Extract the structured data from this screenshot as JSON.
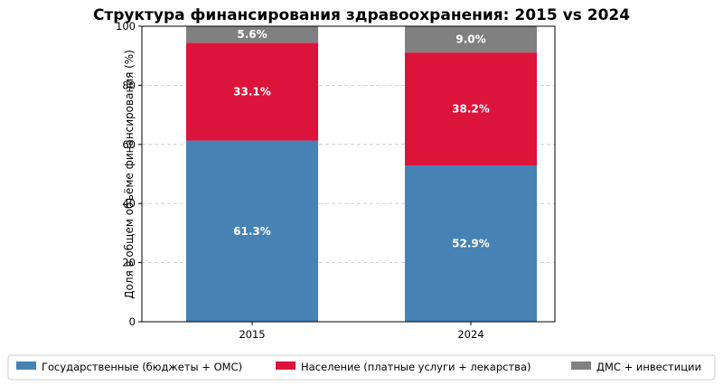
{
  "chart_data": {
    "type": "bar",
    "stacked": true,
    "title": "Структура финансирования здравоохранения: 2015 vs 2024",
    "xlabel": "",
    "ylabel": "Доля в общем объёме финансирования (%)",
    "ylim": [
      0,
      100
    ],
    "yticks": [
      0,
      20,
      40,
      60,
      80,
      100
    ],
    "grid": "horizontal-dashed",
    "legend_position": "bottom",
    "categories": [
      "2015",
      "2024"
    ],
    "series": [
      {
        "name": "Государственные (бюджеты + ОМС)",
        "values": [
          61.3,
          52.9
        ],
        "labels": [
          "61.3%",
          "52.9%"
        ],
        "color": "#4682b4"
      },
      {
        "name": "Население (платные услуги + лекарства)",
        "values": [
          33.1,
          38.2
        ],
        "labels": [
          "33.1%",
          "38.2%"
        ],
        "color": "#dc143c"
      },
      {
        "name": "ДМС + инвестиции",
        "values": [
          5.6,
          9.0
        ],
        "labels": [
          "5.6%",
          "9.0%"
        ],
        "color": "#808080"
      }
    ]
  }
}
